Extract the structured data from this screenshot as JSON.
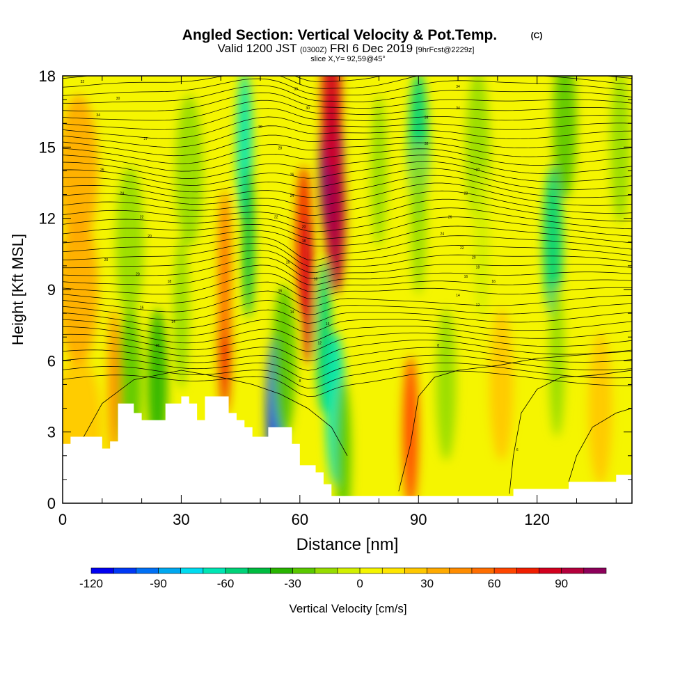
{
  "header": {
    "title": "Angled Section: Vertical Velocity & Pot.Temp.",
    "title_unit": "(C)",
    "subtitle_a": "Valid 1200 JST",
    "subtitle_b": "(0300Z)",
    "subtitle_c": "FRI 6 Dec 2019",
    "subtitle_d": "[9hrFcst@2229z]",
    "slice": "slice X,Y= 92,59@45°"
  },
  "chart_data": {
    "type": "heatmap",
    "xlabel": "Distance [nm]",
    "ylabel": "Height [Kft MSL]",
    "xlim": [
      0,
      144
    ],
    "ylim": [
      0,
      18
    ],
    "x_ticks": [
      0,
      30,
      60,
      90,
      120
    ],
    "y_ticks": [
      0,
      3,
      6,
      9,
      12,
      15,
      18
    ],
    "colorbar": {
      "label": "Vertical Velocity [cm/s]",
      "range": [
        -120,
        110
      ],
      "step": 10,
      "tick_values": [
        -120,
        -90,
        -60,
        -30,
        0,
        30,
        60,
        90
      ],
      "tick_labels": [
        "-120",
        "-90",
        "-60",
        "-30",
        "0",
        "30",
        "60",
        "90"
      ],
      "colors": [
        "#0000f0",
        "#0038f5",
        "#0070f5",
        "#00a8f0",
        "#00dcf0",
        "#00e6b4",
        "#00d278",
        "#00bc40",
        "#28b400",
        "#5ac800",
        "#96dc00",
        "#d2f000",
        "#f5f500",
        "#ffe600",
        "#ffc800",
        "#ffaa00",
        "#ff8c00",
        "#ff6e00",
        "#ff4600",
        "#f01e00",
        "#d2001e",
        "#b4003c",
        "#8c005a",
        "#640078"
      ]
    },
    "velocity_cells": [
      {
        "x": 4,
        "y": 3,
        "w": 12,
        "v": 20
      },
      {
        "x": 4,
        "y": 9,
        "w": 10,
        "v": 30
      },
      {
        "x": 4,
        "y": 14,
        "w": 10,
        "v": 30
      },
      {
        "x": 17,
        "y": 11,
        "w": 7,
        "v": -20
      },
      {
        "x": 17,
        "y": 5,
        "w": 6,
        "v": -30
      },
      {
        "x": 13,
        "y": 5,
        "w": 3,
        "v": 40
      },
      {
        "x": 24,
        "y": 5,
        "w": 5,
        "v": -40
      },
      {
        "x": 41,
        "y": 7,
        "w": 3,
        "v": 70
      },
      {
        "x": 41,
        "y": 10,
        "w": 3,
        "v": 50
      },
      {
        "x": 46,
        "y": 15,
        "w": 4,
        "v": -70
      },
      {
        "x": 47,
        "y": 11,
        "w": 3,
        "v": -50
      },
      {
        "x": 54,
        "y": 4,
        "w": 5,
        "v": -110
      },
      {
        "x": 56,
        "y": 6,
        "w": 6,
        "v": -30
      },
      {
        "x": 61,
        "y": 11,
        "w": 4,
        "v": 70
      },
      {
        "x": 62,
        "y": 9,
        "w": 3,
        "v": 80
      },
      {
        "x": 68,
        "y": 14,
        "w": 6,
        "v": 110
      },
      {
        "x": 69,
        "y": 12,
        "w": 5,
        "v": 90
      },
      {
        "x": 68,
        "y": 17,
        "w": 5,
        "v": 80
      },
      {
        "x": 66,
        "y": 7,
        "w": 4,
        "v": -60
      },
      {
        "x": 69,
        "y": 4,
        "w": 5,
        "v": -70
      },
      {
        "x": 71,
        "y": 2,
        "w": 4,
        "v": -30
      },
      {
        "x": 88,
        "y": 3,
        "w": 4,
        "v": 60
      },
      {
        "x": 90,
        "y": 15,
        "w": 5,
        "v": -60
      },
      {
        "x": 90,
        "y": 12,
        "w": 4,
        "v": -20
      },
      {
        "x": 105,
        "y": 15,
        "w": 6,
        "v": -20
      },
      {
        "x": 106,
        "y": 11,
        "w": 4,
        "v": -10
      },
      {
        "x": 111,
        "y": 5,
        "w": 6,
        "v": 20
      },
      {
        "x": 124,
        "y": 11,
        "w": 5,
        "v": -60
      },
      {
        "x": 127,
        "y": 16,
        "w": 6,
        "v": -30
      },
      {
        "x": 125,
        "y": 6,
        "w": 4,
        "v": -20
      },
      {
        "x": 136,
        "y": 4,
        "w": 6,
        "v": 20
      },
      {
        "x": 141,
        "y": 15,
        "w": 5,
        "v": -20
      },
      {
        "x": 32,
        "y": 14,
        "w": 7,
        "v": -20
      },
      {
        "x": 30,
        "y": 8,
        "w": 4,
        "v": -20
      },
      {
        "x": 80,
        "y": 14,
        "w": 4,
        "v": -20
      },
      {
        "x": 97,
        "y": 5,
        "w": 5,
        "v": -20
      }
    ],
    "terrain": [
      [
        0,
        2.5
      ],
      [
        2,
        2.8
      ],
      [
        4,
        2.8
      ],
      [
        6,
        2.8
      ],
      [
        8,
        2.8
      ],
      [
        10,
        2.3
      ],
      [
        12,
        2.6
      ],
      [
        14,
        4.2
      ],
      [
        16,
        4.2
      ],
      [
        18,
        3.8
      ],
      [
        20,
        3.5
      ],
      [
        22,
        3.5
      ],
      [
        24,
        3.5
      ],
      [
        26,
        4.2
      ],
      [
        28,
        4.2
      ],
      [
        30,
        4.5
      ],
      [
        32,
        4.2
      ],
      [
        34,
        3.5
      ],
      [
        36,
        4.5
      ],
      [
        40,
        4.5
      ],
      [
        42,
        3.8
      ],
      [
        44,
        3.5
      ],
      [
        46,
        3.2
      ],
      [
        48,
        2.8
      ],
      [
        50,
        2.8
      ],
      [
        52,
        3.2
      ],
      [
        54,
        3.2
      ],
      [
        56,
        3.2
      ],
      [
        58,
        2.5
      ],
      [
        60,
        1.6
      ],
      [
        62,
        1.6
      ],
      [
        64,
        1.3
      ],
      [
        66,
        0.8
      ],
      [
        68,
        0.3
      ],
      [
        80,
        0.3
      ],
      [
        90,
        0.3
      ],
      [
        100,
        0.3
      ],
      [
        114,
        0.3
      ],
      [
        114,
        0.6
      ],
      [
        128,
        0.9
      ],
      [
        140,
        1.2
      ],
      [
        144,
        1.2
      ]
    ],
    "theta_labels": [
      {
        "x": 5,
        "y": 17.7,
        "text": "32"
      },
      {
        "x": 14,
        "y": 17.0,
        "text": "30"
      },
      {
        "x": 9,
        "y": 16.3,
        "text": "34"
      },
      {
        "x": 21,
        "y": 15.3,
        "text": "27"
      },
      {
        "x": 10,
        "y": 14.0,
        "text": "26"
      },
      {
        "x": 15,
        "y": 13.0,
        "text": "24"
      },
      {
        "x": 20,
        "y": 12.0,
        "text": "22"
      },
      {
        "x": 22,
        "y": 11.2,
        "text": "20"
      },
      {
        "x": 11,
        "y": 10.2,
        "text": "20"
      },
      {
        "x": 19,
        "y": 9.6,
        "text": "20"
      },
      {
        "x": 27,
        "y": 9.3,
        "text": "18"
      },
      {
        "x": 20,
        "y": 8.2,
        "text": "16"
      },
      {
        "x": 28,
        "y": 7.6,
        "text": "14"
      },
      {
        "x": 24,
        "y": 6.6,
        "text": "15"
      },
      {
        "x": 59,
        "y": 17.4,
        "text": "30"
      },
      {
        "x": 62,
        "y": 16.6,
        "text": "30"
      },
      {
        "x": 50,
        "y": 15.8,
        "text": "30"
      },
      {
        "x": 55,
        "y": 14.9,
        "text": "28"
      },
      {
        "x": 58,
        "y": 13.8,
        "text": "26"
      },
      {
        "x": 58,
        "y": 12.9,
        "text": "24"
      },
      {
        "x": 54,
        "y": 12.0,
        "text": "22"
      },
      {
        "x": 61,
        "y": 11.6,
        "text": "20"
      },
      {
        "x": 61,
        "y": 11.0,
        "text": "18"
      },
      {
        "x": 57,
        "y": 10.1,
        "text": "20"
      },
      {
        "x": 64,
        "y": 9.4,
        "text": "18"
      },
      {
        "x": 55,
        "y": 8.9,
        "text": "16"
      },
      {
        "x": 58,
        "y": 8.0,
        "text": "14"
      },
      {
        "x": 67,
        "y": 7.5,
        "text": "16"
      },
      {
        "x": 65,
        "y": 6.7,
        "text": "12"
      },
      {
        "x": 60,
        "y": 5.1,
        "text": "8"
      },
      {
        "x": 100,
        "y": 17.5,
        "text": "34"
      },
      {
        "x": 100,
        "y": 16.6,
        "text": "34"
      },
      {
        "x": 92,
        "y": 16.2,
        "text": "34"
      },
      {
        "x": 92,
        "y": 15.1,
        "text": "32"
      },
      {
        "x": 105,
        "y": 14.0,
        "text": "30"
      },
      {
        "x": 102,
        "y": 13.0,
        "text": "28"
      },
      {
        "x": 98,
        "y": 12.0,
        "text": "26"
      },
      {
        "x": 96,
        "y": 11.3,
        "text": "24"
      },
      {
        "x": 101,
        "y": 10.7,
        "text": "22"
      },
      {
        "x": 104,
        "y": 10.3,
        "text": "20"
      },
      {
        "x": 105,
        "y": 9.9,
        "text": "18"
      },
      {
        "x": 102,
        "y": 9.5,
        "text": "16"
      },
      {
        "x": 109,
        "y": 9.3,
        "text": "16"
      },
      {
        "x": 100,
        "y": 8.7,
        "text": "14"
      },
      {
        "x": 105,
        "y": 8.3,
        "text": "12"
      },
      {
        "x": 95,
        "y": 6.6,
        "text": "8"
      },
      {
        "x": 115,
        "y": 2.2,
        "text": "6"
      }
    ]
  }
}
